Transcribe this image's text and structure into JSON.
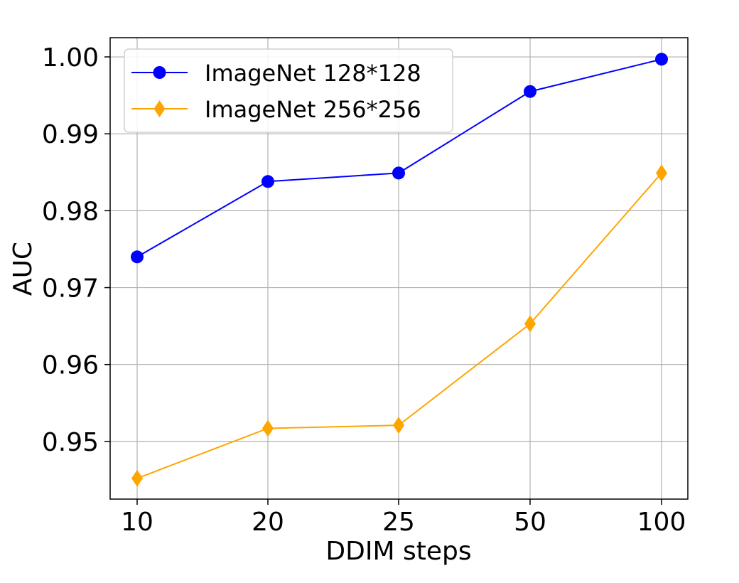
{
  "chart_data": {
    "type": "line",
    "title": "",
    "xlabel": "DDIM steps",
    "ylabel": "AUC",
    "categories": [
      "10",
      "20",
      "25",
      "50",
      "100"
    ],
    "ylim": [
      0.9425,
      1.0025
    ],
    "yticks": [
      "0.95",
      "0.96",
      "0.97",
      "0.98",
      "0.99",
      "1.00"
    ],
    "ytick_values": [
      0.95,
      0.96,
      0.97,
      0.98,
      0.99,
      1.0
    ],
    "grid": true,
    "legend_position": "top-left",
    "series": [
      {
        "name": "ImageNet 128*128",
        "values": [
          0.974,
          0.9838,
          0.9849,
          0.9955,
          0.9997
        ],
        "color": "#0000ff",
        "marker": "circle"
      },
      {
        "name": "ImageNet 256*256",
        "values": [
          0.9452,
          0.9517,
          0.9521,
          0.9653,
          0.9849
        ],
        "color": "#ffa500",
        "marker": "diamond"
      }
    ]
  }
}
